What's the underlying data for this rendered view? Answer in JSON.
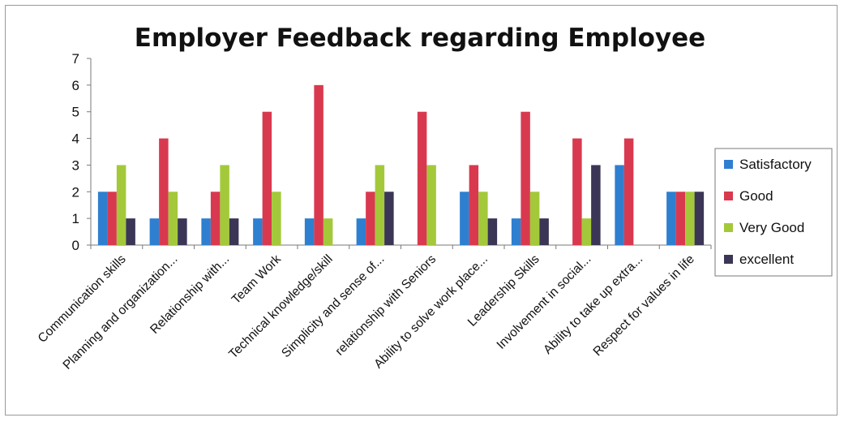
{
  "chart_data": {
    "type": "bar",
    "title": "Employer Feedback regarding Employee",
    "xlabel": "",
    "ylabel": "",
    "ylim": [
      0,
      7
    ],
    "yticks": [
      0,
      1,
      2,
      3,
      4,
      5,
      6,
      7
    ],
    "grid": false,
    "legend_position": "right",
    "categories": [
      "Communication skills",
      "Planning and organization...",
      "Relationship with...",
      "Team Work",
      "Technical knowledge/skill",
      "Simplicity and sense of...",
      "relationship with Seniors",
      "Ability to solve work place...",
      "Leadership Skills",
      "Involvement in social...",
      "Ability to take up extra...",
      "Respect for values in life"
    ],
    "series": [
      {
        "name": "Satisfactory",
        "color": "#2e7fd0",
        "values": [
          2,
          1,
          1,
          1,
          1,
          1,
          0,
          2,
          1,
          0,
          3,
          2
        ]
      },
      {
        "name": "Good",
        "color": "#d9394f",
        "values": [
          2,
          4,
          2,
          5,
          6,
          2,
          5,
          3,
          5,
          4,
          4,
          2
        ]
      },
      {
        "name": "Very Good",
        "color": "#a3c93a",
        "values": [
          3,
          2,
          3,
          2,
          1,
          3,
          3,
          2,
          2,
          1,
          0,
          2
        ]
      },
      {
        "name": "excellent",
        "color": "#3b3556",
        "values": [
          1,
          1,
          1,
          0,
          0,
          2,
          0,
          1,
          1,
          3,
          0,
          2
        ]
      }
    ]
  }
}
